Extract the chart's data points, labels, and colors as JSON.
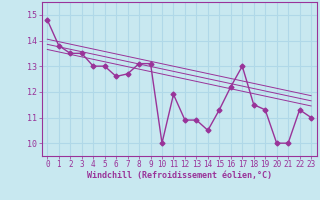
{
  "x": [
    0,
    1,
    2,
    3,
    4,
    5,
    6,
    7,
    8,
    9,
    10,
    11,
    12,
    13,
    14,
    15,
    16,
    17,
    18,
    19,
    20,
    21,
    22,
    23
  ],
  "y_main": [
    14.8,
    13.8,
    13.5,
    13.5,
    13.0,
    13.0,
    12.6,
    12.7,
    13.1,
    13.1,
    10.0,
    11.9,
    10.9,
    10.9,
    10.5,
    11.3,
    12.2,
    13.0,
    11.5,
    11.3,
    10.0,
    10.0,
    11.3,
    11.0
  ],
  "trend_lines": [
    {
      "x0": 0,
      "y0": 13.65,
      "x1": 23,
      "y1": 11.45
    },
    {
      "x0": 0,
      "y0": 13.85,
      "x1": 23,
      "y1": 11.65
    },
    {
      "x0": 0,
      "y0": 14.05,
      "x1": 23,
      "y1": 11.85
    }
  ],
  "color": "#993399",
  "bg_color": "#c8e8f0",
  "grid_color": "#b0d8e8",
  "xlabel": "Windchill (Refroidissement éolien,°C)",
  "xlim": [
    -0.5,
    23.5
  ],
  "ylim": [
    9.5,
    15.5
  ],
  "yticks": [
    10,
    11,
    12,
    13,
    14,
    15
  ],
  "xticks": [
    0,
    1,
    2,
    3,
    4,
    5,
    6,
    7,
    8,
    9,
    10,
    11,
    12,
    13,
    14,
    15,
    16,
    17,
    18,
    19,
    20,
    21,
    22,
    23
  ],
  "marker": "D",
  "markersize": 2.5,
  "linewidth": 1.0,
  "trend_linewidth": 0.7,
  "font_color": "#993399",
  "tick_fontsize": 5.5,
  "xlabel_fontsize": 6.0
}
